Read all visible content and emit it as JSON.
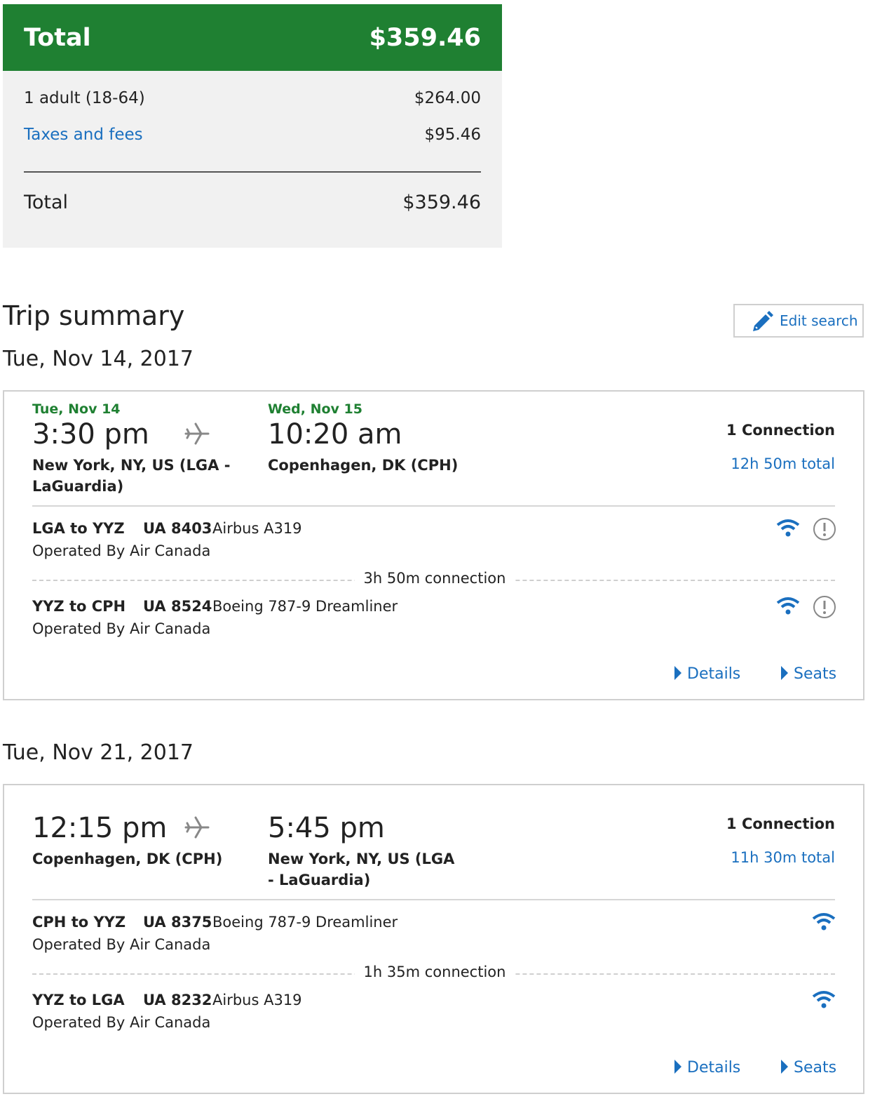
{
  "price": {
    "header_label": "Total",
    "header_amount": "$359.46",
    "rows": [
      {
        "label": "1 adult (18-64)",
        "amount": "$264.00"
      },
      {
        "label": "Taxes and fees",
        "amount": "$95.46"
      }
    ],
    "total_label": "Total",
    "total_amount": "$359.46"
  },
  "trip": {
    "title": "Trip summary",
    "edit_label": "Edit search"
  },
  "outbound": {
    "date_heading": "Tue, Nov 14, 2017",
    "depart_date": "Tue, Nov 14",
    "depart_time": "3:30 pm",
    "depart_city_line1": "New York, NY, US (LGA -",
    "depart_city_line2": "LaGuardia)",
    "arrive_date": "Wed, Nov 15",
    "arrive_time": "10:20 am",
    "arrive_city_line1": "Copenhagen, DK (CPH)",
    "connections": "1 Connection",
    "duration": "12h 50m total",
    "segments": [
      {
        "route": "LGA to YYZ",
        "flight": "UA 8403",
        "aircraft": "Airbus A319",
        "operator": "Operated By Air Canada"
      },
      {
        "route": "YYZ to CPH",
        "flight": "UA 8524",
        "aircraft": "Boeing 787-9 Dreamliner",
        "operator": "Operated By Air Canada"
      }
    ],
    "layover": "3h 50m connection",
    "details_label": "Details",
    "seats_label": "Seats"
  },
  "return": {
    "date_heading": "Tue, Nov 21, 2017",
    "depart_time": "12:15 pm",
    "depart_city_line1": "Copenhagen, DK (CPH)",
    "arrive_time": "5:45 pm",
    "arrive_city_line1": "New York, NY, US (LGA",
    "arrive_city_line2": "- LaGuardia)",
    "connections": "1 Connection",
    "duration": "11h 30m total",
    "segments": [
      {
        "route": "CPH to YYZ",
        "flight": "UA 8375",
        "aircraft": "Boeing 787-9 Dreamliner",
        "operator": "Operated By Air Canada"
      },
      {
        "route": "YYZ to LGA",
        "flight": "UA 8232",
        "aircraft": "Airbus A319",
        "operator": "Operated By Air Canada"
      }
    ],
    "layover": "1h 35m connection",
    "details_label": "Details",
    "seats_label": "Seats"
  },
  "icons": {
    "edit": "pencil-icon",
    "plane": "airplane-icon",
    "wifi": "wifi-icon",
    "info": "alert-circle-icon",
    "caret": "caret-right-icon"
  },
  "colors": {
    "brand_green": "#1f8032",
    "link_blue": "#1a6fbf",
    "panel_gray": "#f1f1f1"
  }
}
